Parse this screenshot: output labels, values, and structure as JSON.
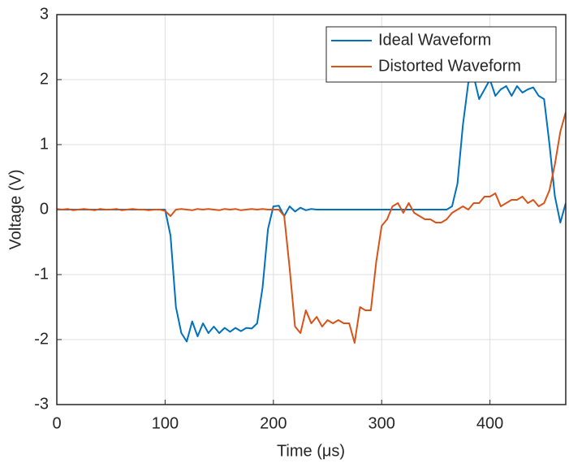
{
  "chart_data": {
    "type": "line",
    "xlabel": "Time (μs)",
    "ylabel": "Voltage (V)",
    "x": [
      0,
      5,
      10,
      15,
      20,
      25,
      30,
      35,
      40,
      45,
      50,
      55,
      60,
      65,
      70,
      75,
      80,
      85,
      90,
      95,
      100,
      105,
      110,
      115,
      120,
      125,
      130,
      135,
      140,
      145,
      150,
      155,
      160,
      165,
      170,
      175,
      180,
      185,
      190,
      195,
      200,
      205,
      210,
      215,
      220,
      225,
      230,
      235,
      240,
      245,
      250,
      255,
      260,
      265,
      270,
      275,
      280,
      285,
      290,
      295,
      300,
      305,
      310,
      315,
      320,
      325,
      330,
      335,
      340,
      345,
      350,
      355,
      360,
      365,
      370,
      375,
      380,
      385,
      390,
      395,
      400,
      405,
      410,
      415,
      420,
      425,
      430,
      435,
      440,
      445,
      450,
      455,
      460,
      465,
      470
    ],
    "series": [
      {
        "name": "Ideal Waveform",
        "color": "#0072bd",
        "values": [
          0,
          0,
          0,
          0,
          0,
          0,
          0,
          0,
          0,
          0,
          0,
          0,
          0,
          0,
          0,
          0,
          0,
          0,
          0,
          0,
          0,
          -0.4,
          -1.5,
          -1.9,
          -2.03,
          -1.72,
          -1.95,
          -1.75,
          -1.9,
          -1.8,
          -1.9,
          -1.82,
          -1.88,
          -1.82,
          -1.87,
          -1.82,
          -1.83,
          -1.75,
          -1.2,
          -0.3,
          0.05,
          0.06,
          -0.1,
          0.05,
          -0.03,
          0.03,
          -0.01,
          0.01,
          0,
          0,
          0,
          0,
          0,
          0,
          0,
          0,
          0,
          0,
          0,
          0,
          0,
          0,
          0,
          0,
          0,
          0,
          0,
          0,
          0,
          0,
          0,
          0,
          0,
          0.05,
          0.4,
          1.3,
          1.95,
          2.05,
          1.7,
          1.85,
          2.0,
          1.75,
          1.85,
          1.9,
          1.75,
          1.9,
          1.8,
          1.85,
          1.88,
          1.75,
          1.7,
          1.0,
          0.2,
          -0.2,
          0.1
        ]
      },
      {
        "name": "Distorted Waveform",
        "color": "#d95319",
        "values": [
          0.01,
          0,
          0.01,
          -0.01,
          0,
          0.01,
          0,
          -0.01,
          0.01,
          0,
          0,
          0.01,
          -0.01,
          0,
          0.01,
          0,
          0,
          -0.01,
          0,
          0,
          -0.02,
          -0.1,
          0,
          0.01,
          0,
          -0.01,
          0.01,
          0,
          0.01,
          0,
          -0.01,
          0.01,
          0,
          0.01,
          -0.01,
          0,
          0.01,
          0,
          0.01,
          0,
          0,
          0,
          -0.1,
          -0.9,
          -1.8,
          -1.9,
          -1.55,
          -1.75,
          -1.65,
          -1.8,
          -1.7,
          -1.75,
          -1.7,
          -1.75,
          -1.75,
          -2.05,
          -1.5,
          -1.55,
          -1.55,
          -0.8,
          -0.25,
          -0.15,
          0.05,
          0.1,
          -0.05,
          0.1,
          -0.05,
          -0.1,
          -0.15,
          -0.15,
          -0.2,
          -0.2,
          -0.15,
          -0.05,
          0,
          0.05,
          0,
          0.1,
          0.1,
          0.2,
          0.2,
          0.25,
          0.05,
          0.1,
          0.15,
          0.15,
          0.2,
          0.1,
          0.15,
          0.05,
          0.1,
          0.3,
          0.7,
          1.2,
          1.5
        ]
      }
    ],
    "xlim": [
      0,
      470
    ],
    "ylim": [
      -3,
      3
    ],
    "xticks": [
      0,
      100,
      200,
      300,
      400
    ],
    "yticks": [
      -3,
      -2,
      -1,
      0,
      1,
      2,
      3
    ],
    "grid": true,
    "legend": "northeast"
  }
}
